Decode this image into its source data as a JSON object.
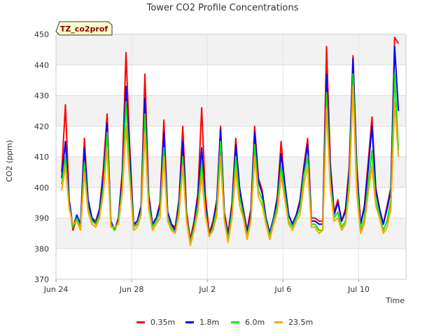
{
  "chart_data": {
    "type": "line",
    "title": "Tower CO2 Profile Concentrations",
    "badge": "TZ_co2prof",
    "xlabel": "Time",
    "ylabel": "CO2 (ppm)",
    "ylim": [
      370,
      450
    ],
    "yticks": [
      370,
      380,
      390,
      400,
      410,
      420,
      430,
      440,
      450
    ],
    "xlim": [
      0,
      18.5
    ],
    "xticks": [
      {
        "value": 0,
        "label": "Jun 24"
      },
      {
        "value": 4,
        "label": "Jun 28"
      },
      {
        "value": 8,
        "label": "Jul 2"
      },
      {
        "value": 12,
        "label": "Jul 6"
      },
      {
        "value": 16,
        "label": "Jul 10"
      }
    ],
    "x": [
      0.3,
      0.5,
      0.7,
      0.9,
      1.1,
      1.3,
      1.5,
      1.7,
      1.9,
      2.1,
      2.3,
      2.5,
      2.7,
      2.9,
      3.1,
      3.3,
      3.5,
      3.7,
      3.9,
      4.1,
      4.3,
      4.5,
      4.7,
      4.9,
      5.1,
      5.3,
      5.5,
      5.7,
      5.9,
      6.1,
      6.3,
      6.5,
      6.7,
      6.9,
      7.1,
      7.3,
      7.5,
      7.7,
      7.9,
      8.1,
      8.3,
      8.5,
      8.7,
      8.9,
      9.1,
      9.3,
      9.5,
      9.7,
      9.9,
      10.1,
      10.3,
      10.5,
      10.7,
      10.9,
      11.1,
      11.3,
      11.5,
      11.7,
      11.9,
      12.1,
      12.3,
      12.5,
      12.7,
      12.9,
      13.1,
      13.3,
      13.5,
      13.7,
      13.9,
      14.1,
      14.3,
      14.5,
      14.7,
      14.9,
      15.1,
      15.3,
      15.5,
      15.7,
      15.9,
      16.1,
      16.3,
      16.5,
      16.7,
      16.9,
      17.1,
      17.3,
      17.5,
      17.7,
      17.9,
      18.1
    ],
    "series": [
      {
        "name": "0.35m",
        "color": "#ff0000",
        "values": [
          405,
          427,
          395,
          386,
          390,
          388,
          416,
          395,
          390,
          389,
          393,
          406,
          424,
          388,
          386,
          390,
          405,
          444,
          413,
          388,
          388,
          394,
          437,
          398,
          388,
          390,
          395,
          422,
          392,
          388,
          387,
          396,
          420,
          392,
          383,
          389,
          398,
          426,
          397,
          385,
          389,
          396,
          420,
          392,
          385,
          395,
          416,
          400,
          393,
          386,
          393,
          420,
          403,
          399,
          390,
          385,
          390,
          397,
          415,
          400,
          391,
          388,
          391,
          396,
          407,
          416,
          390,
          390,
          389,
          389,
          446,
          408,
          392,
          396,
          389,
          393,
          407,
          443,
          407,
          388,
          394,
          408,
          423,
          400,
          393,
          388,
          394,
          400,
          449,
          447
        ]
      },
      {
        "name": "1.8m",
        "color": "#0000ff",
        "values": [
          403,
          415,
          396,
          387,
          391,
          388,
          413,
          396,
          390,
          388,
          393,
          403,
          421,
          389,
          386,
          390,
          403,
          433,
          410,
          388,
          389,
          394,
          429,
          397,
          388,
          390,
          394,
          418,
          392,
          388,
          386,
          395,
          415,
          391,
          382,
          388,
          397,
          413,
          394,
          384,
          388,
          395,
          419,
          391,
          384,
          394,
          414,
          400,
          392,
          385,
          392,
          418,
          402,
          398,
          390,
          385,
          390,
          396,
          411,
          401,
          391,
          388,
          391,
          395,
          406,
          414,
          389,
          389,
          388,
          388,
          437,
          406,
          391,
          395,
          389,
          392,
          405,
          442,
          406,
          388,
          393,
          406,
          420,
          399,
          393,
          388,
          393,
          399,
          446,
          425
        ]
      },
      {
        "name": "6.0m",
        "color": "#00ee00",
        "values": [
          401,
          410,
          394,
          387,
          390,
          387,
          408,
          393,
          389,
          388,
          391,
          400,
          418,
          388,
          386,
          389,
          400,
          428,
          405,
          387,
          388,
          392,
          424,
          395,
          387,
          389,
          392,
          413,
          390,
          387,
          385,
          393,
          410,
          390,
          382,
          387,
          394,
          408,
          392,
          384,
          387,
          393,
          415,
          390,
          383,
          392,
          410,
          397,
          391,
          384,
          390,
          414,
          399,
          396,
          389,
          384,
          389,
          394,
          407,
          398,
          389,
          387,
          390,
          393,
          404,
          410,
          388,
          388,
          386,
          386,
          431,
          402,
          390,
          392,
          387,
          389,
          402,
          437,
          402,
          386,
          390,
          401,
          412,
          396,
          391,
          386,
          389,
          396,
          437,
          412
        ]
      },
      {
        "name": "23.5m",
        "color": "#ffa500",
        "values": [
          399,
          407,
          393,
          388,
          389,
          386,
          405,
          392,
          388,
          387,
          390,
          398,
          413,
          387,
          387,
          388,
          398,
          420,
          402,
          386,
          387,
          391,
          418,
          393,
          386,
          388,
          390,
          410,
          389,
          386,
          385,
          391,
          407,
          389,
          381,
          386,
          392,
          404,
          391,
          384,
          386,
          391,
          410,
          389,
          382,
          390,
          406,
          394,
          390,
          383,
          389,
          410,
          397,
          394,
          388,
          383,
          388,
          392,
          404,
          396,
          388,
          386,
          389,
          391,
          401,
          407,
          387,
          387,
          385,
          386,
          426,
          400,
          389,
          390,
          386,
          388,
          399,
          433,
          398,
          385,
          388,
          398,
          407,
          394,
          390,
          385,
          387,
          393,
          428,
          410
        ]
      }
    ],
    "grid": true,
    "legend": "bottom"
  }
}
